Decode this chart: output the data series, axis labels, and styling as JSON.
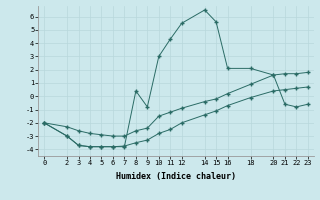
{
  "xlabel": "Humidex (Indice chaleur)",
  "background_color": "#cce8ec",
  "line_color": "#2a6b65",
  "grid_color": "#b8d8dc",
  "ylim": [
    -4.5,
    6.8
  ],
  "xlim": [
    -0.5,
    23.5
  ],
  "xticks": [
    0,
    2,
    3,
    4,
    5,
    6,
    7,
    8,
    9,
    10,
    11,
    12,
    14,
    15,
    16,
    18,
    20,
    21,
    22,
    23
  ],
  "yticks": [
    -4,
    -3,
    -2,
    -1,
    0,
    1,
    2,
    3,
    4,
    5,
    6
  ],
  "line1_x": [
    0,
    2,
    3,
    4,
    5,
    6,
    7,
    8,
    9,
    10,
    11,
    12,
    14,
    15,
    16,
    18,
    20,
    21,
    22,
    23
  ],
  "line1_y": [
    -2.0,
    -3.0,
    -3.7,
    -3.8,
    -3.8,
    -3.8,
    -3.8,
    0.4,
    -0.8,
    3.0,
    4.3,
    5.5,
    6.5,
    5.6,
    2.1,
    2.1,
    1.6,
    -0.6,
    -0.8,
    -0.6
  ],
  "line2_x": [
    0,
    2,
    3,
    4,
    5,
    6,
    7,
    8,
    9,
    10,
    11,
    12,
    14,
    15,
    16,
    18,
    20,
    21,
    22,
    23
  ],
  "line2_y": [
    -2.0,
    -2.3,
    -2.6,
    -2.8,
    -2.9,
    -3.0,
    -3.0,
    -2.6,
    -2.4,
    -1.5,
    -1.2,
    -0.9,
    -0.4,
    -0.2,
    0.2,
    0.9,
    1.6,
    1.7,
    1.7,
    1.8
  ],
  "line3_x": [
    0,
    2,
    3,
    4,
    5,
    6,
    7,
    8,
    9,
    10,
    11,
    12,
    14,
    15,
    16,
    18,
    20,
    21,
    22,
    23
  ],
  "line3_y": [
    -2.0,
    -3.0,
    -3.7,
    -3.8,
    -3.8,
    -3.8,
    -3.75,
    -3.5,
    -3.3,
    -2.8,
    -2.5,
    -2.0,
    -1.4,
    -1.1,
    -0.7,
    -0.1,
    0.4,
    0.5,
    0.6,
    0.7
  ]
}
